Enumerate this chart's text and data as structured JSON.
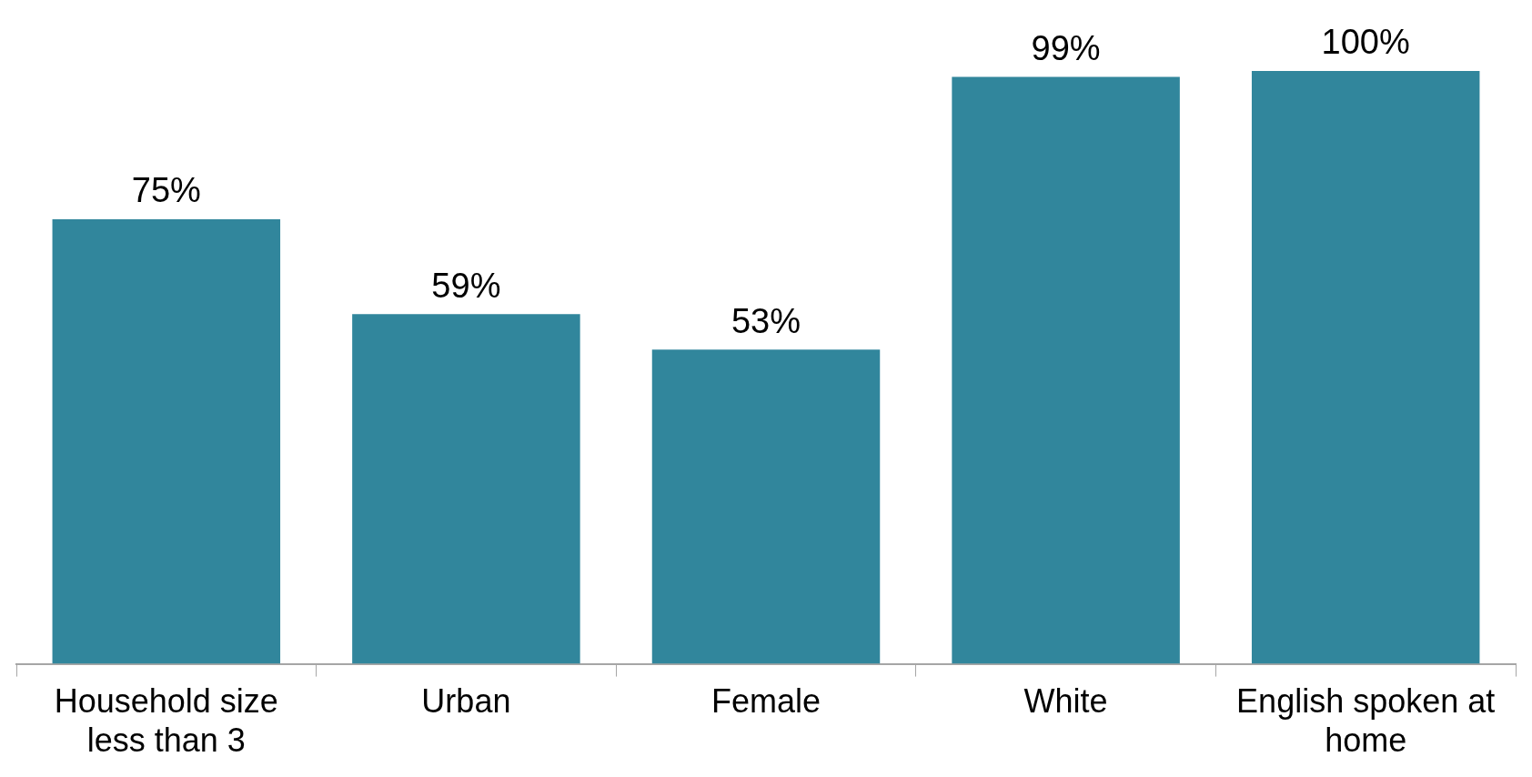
{
  "chart_data": {
    "type": "bar",
    "categories": [
      "Household size less than 3",
      "Urban",
      "Female",
      "White",
      "English spoken at home"
    ],
    "values": [
      75,
      59,
      53,
      99,
      100
    ],
    "value_labels": [
      "75%",
      "59%",
      "53%",
      "99%",
      "100%"
    ],
    "color": "#31869c",
    "grid": false,
    "legend": false
  }
}
